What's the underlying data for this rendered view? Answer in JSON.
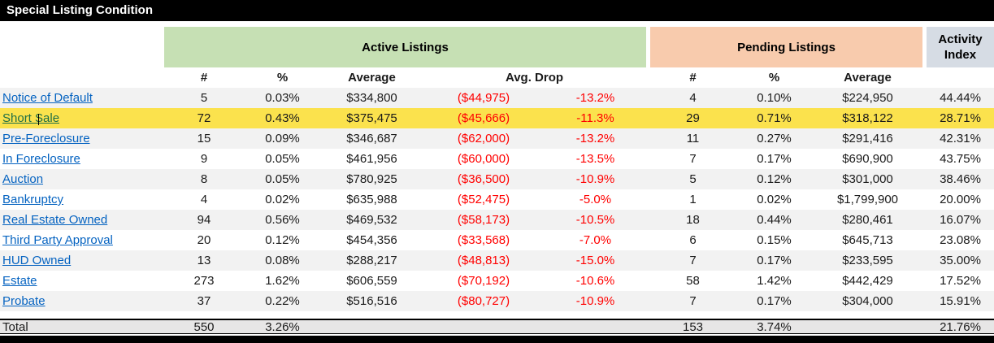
{
  "title": "Special Listing Condition",
  "groups": {
    "active": {
      "label": "Active Listings",
      "color": "#c6e0b4"
    },
    "pending": {
      "label": "Pending Listings",
      "color": "#f8cbad"
    },
    "activity": {
      "label": "Activity Index",
      "color": "#d6dce4"
    }
  },
  "subcolumns": {
    "active": [
      "#",
      "%",
      "Average",
      "Avg. Drop"
    ],
    "pending": [
      "#",
      "%",
      "Average"
    ]
  },
  "styles": {
    "highlight_color": "#fbe24d",
    "stripe_color": "#f2f2f2",
    "link_color": "#0563c1",
    "followed_link_color": "#1e6f46",
    "negative_color": "#ff0000",
    "title_bar_color": "#000000"
  },
  "rows": [
    {
      "label": "Notice of Default",
      "active_count": "5",
      "active_pct": "0.03%",
      "active_avg": "$334,800",
      "avg_drop_amount": "($44,975)",
      "avg_drop_pct": "-13.2%",
      "pending_count": "4",
      "pending_pct": "0.10%",
      "pending_avg": "$224,950",
      "activity_index": "44.44%",
      "highlighted": false
    },
    {
      "label": "Short Sale",
      "active_count": "72",
      "active_pct": "0.43%",
      "active_avg": "$375,475",
      "avg_drop_amount": "($45,666)",
      "avg_drop_pct": "-11.3%",
      "pending_count": "29",
      "pending_pct": "0.71%",
      "pending_avg": "$318,122",
      "activity_index": "28.71%",
      "highlighted": true
    },
    {
      "label": "Pre-Foreclosure",
      "active_count": "15",
      "active_pct": "0.09%",
      "active_avg": "$346,687",
      "avg_drop_amount": "($62,000)",
      "avg_drop_pct": "-13.2%",
      "pending_count": "11",
      "pending_pct": "0.27%",
      "pending_avg": "$291,416",
      "activity_index": "42.31%",
      "highlighted": false
    },
    {
      "label": "In Foreclosure",
      "active_count": "9",
      "active_pct": "0.05%",
      "active_avg": "$461,956",
      "avg_drop_amount": "($60,000)",
      "avg_drop_pct": "-13.5%",
      "pending_count": "7",
      "pending_pct": "0.17%",
      "pending_avg": "$690,900",
      "activity_index": "43.75%",
      "highlighted": false
    },
    {
      "label": "Auction",
      "active_count": "8",
      "active_pct": "0.05%",
      "active_avg": "$780,925",
      "avg_drop_amount": "($36,500)",
      "avg_drop_pct": "-10.9%",
      "pending_count": "5",
      "pending_pct": "0.12%",
      "pending_avg": "$301,000",
      "activity_index": "38.46%",
      "highlighted": false
    },
    {
      "label": "Bankruptcy",
      "active_count": "4",
      "active_pct": "0.02%",
      "active_avg": "$635,988",
      "avg_drop_amount": "($52,475)",
      "avg_drop_pct": "-5.0%",
      "pending_count": "1",
      "pending_pct": "0.02%",
      "pending_avg": "$1,799,900",
      "activity_index": "20.00%",
      "highlighted": false
    },
    {
      "label": "Real Estate Owned",
      "active_count": "94",
      "active_pct": "0.56%",
      "active_avg": "$469,532",
      "avg_drop_amount": "($58,173)",
      "avg_drop_pct": "-10.5%",
      "pending_count": "18",
      "pending_pct": "0.44%",
      "pending_avg": "$280,461",
      "activity_index": "16.07%",
      "highlighted": false
    },
    {
      "label": "Third Party Approval",
      "active_count": "20",
      "active_pct": "0.12%",
      "active_avg": "$454,356",
      "avg_drop_amount": "($33,568)",
      "avg_drop_pct": "-7.0%",
      "pending_count": "6",
      "pending_pct": "0.15%",
      "pending_avg": "$645,713",
      "activity_index": "23.08%",
      "highlighted": false
    },
    {
      "label": "HUD Owned",
      "active_count": "13",
      "active_pct": "0.08%",
      "active_avg": "$288,217",
      "avg_drop_amount": "($48,813)",
      "avg_drop_pct": "-15.0%",
      "pending_count": "7",
      "pending_pct": "0.17%",
      "pending_avg": "$233,595",
      "activity_index": "35.00%",
      "highlighted": false
    },
    {
      "label": "Estate",
      "active_count": "273",
      "active_pct": "1.62%",
      "active_avg": "$606,559",
      "avg_drop_amount": "($70,192)",
      "avg_drop_pct": "-10.6%",
      "pending_count": "58",
      "pending_pct": "1.42%",
      "pending_avg": "$442,429",
      "activity_index": "17.52%",
      "highlighted": false
    },
    {
      "label": "Probate",
      "active_count": "37",
      "active_pct": "0.22%",
      "active_avg": "$516,516",
      "avg_drop_amount": "($80,727)",
      "avg_drop_pct": "-10.9%",
      "pending_count": "7",
      "pending_pct": "0.17%",
      "pending_avg": "$304,000",
      "activity_index": "15.91%",
      "highlighted": false
    }
  ],
  "total": {
    "label": "Total",
    "active_count": "550",
    "active_pct": "3.26%",
    "pending_count": "153",
    "pending_pct": "3.74%",
    "activity_index": "21.76%"
  }
}
